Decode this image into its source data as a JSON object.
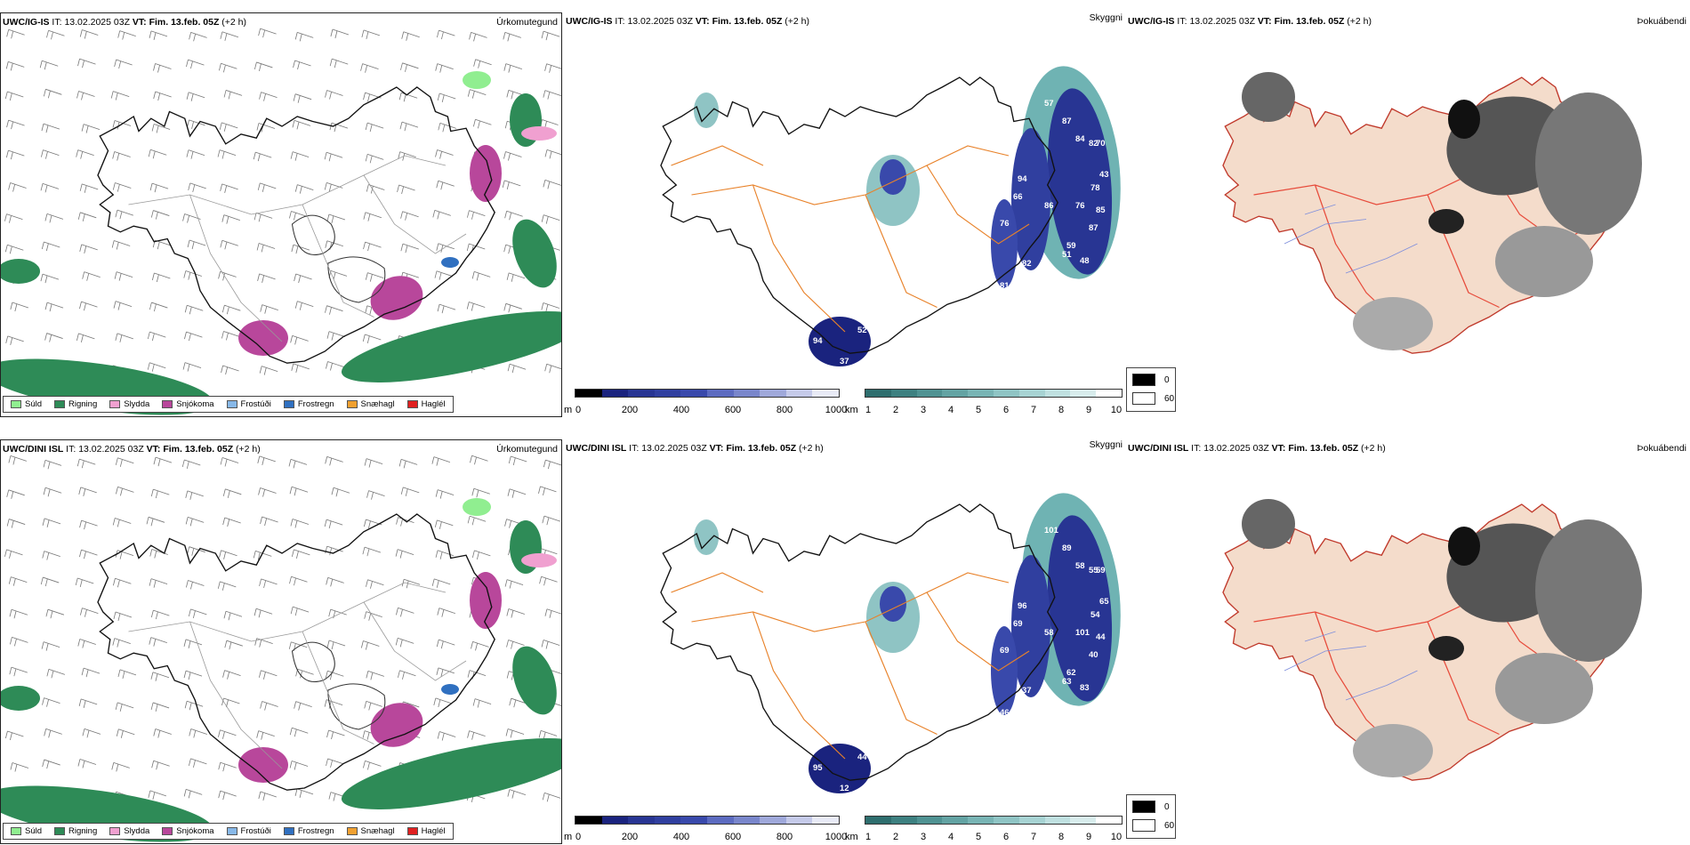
{
  "rows": [
    {
      "model": "UWC/IG-IS",
      "it_label": "IT:",
      "it_value": "13.02.2025 03Z",
      "vt_label": "VT:",
      "vt_value": "Fim. 13.feb. 05Z",
      "lead": "(+2 h)",
      "cloud_numbers": [
        "57",
        "87",
        "84",
        "82",
        "70",
        "43",
        "78",
        "76",
        "85",
        "87",
        "59",
        "51",
        "48",
        "86",
        "66",
        "94",
        "76",
        "81",
        "96",
        "82",
        "52",
        "94",
        "37"
      ]
    },
    {
      "model": "UWC/DINI ISL",
      "it_label": "IT:",
      "it_value": "13.02.2025 03Z",
      "vt_label": "VT:",
      "vt_value": "Fim. 13.feb. 05Z",
      "lead": "(+2 h)",
      "cloud_numbers": [
        "101",
        "89",
        "58",
        "55",
        "59",
        "65",
        "54",
        "101",
        "44",
        "40",
        "62",
        "63",
        "83",
        "58",
        "69",
        "96",
        "69",
        "46",
        "89",
        "37",
        "44",
        "95",
        "12"
      ]
    }
  ],
  "panel_titles": {
    "precip": "Úrkomutegund",
    "cloud": "Skyggni",
    "fog": "Þokuábendi"
  },
  "precip_legend": [
    {
      "label": "Súld",
      "color": "#90ee90"
    },
    {
      "label": "Rigning",
      "color": "#2e8b57"
    },
    {
      "label": "Slydda",
      "color": "#f0a0d0"
    },
    {
      "label": "Snjókoma",
      "color": "#b8479b"
    },
    {
      "label": "Frostúði",
      "color": "#87b8e8"
    },
    {
      "label": "Frostregn",
      "color": "#3070c0"
    },
    {
      "label": "Snæhagl",
      "color": "#f0a030"
    },
    {
      "label": "Haglél",
      "color": "#e02020"
    }
  ],
  "cloud_base_scale": {
    "unit": "m",
    "ticks": [
      "0",
      "200",
      "400",
      "600",
      "800",
      "1000"
    ],
    "colors": [
      "#000000",
      "#1a237e",
      "#283593",
      "#303f9f",
      "#3949ab",
      "#5c6bc0",
      "#7986cb",
      "#9fa8da",
      "#c5cae9",
      "#e8eaf6"
    ]
  },
  "visibility_scale": {
    "unit": "km",
    "ticks": [
      "1",
      "2",
      "3",
      "4",
      "5",
      "6",
      "7",
      "8",
      "9",
      "10"
    ],
    "colors": [
      "#2e6e6e",
      "#3d8080",
      "#4f9292",
      "#63a3a3",
      "#78b4b4",
      "#8fc4c4",
      "#a7d3d3",
      "#bfe0e0",
      "#d8ecec",
      "#ffffff"
    ]
  },
  "fog_legend": [
    {
      "label": "0",
      "color": "#000000"
    },
    {
      "label": "60",
      "color": "#ffffff"
    }
  ]
}
